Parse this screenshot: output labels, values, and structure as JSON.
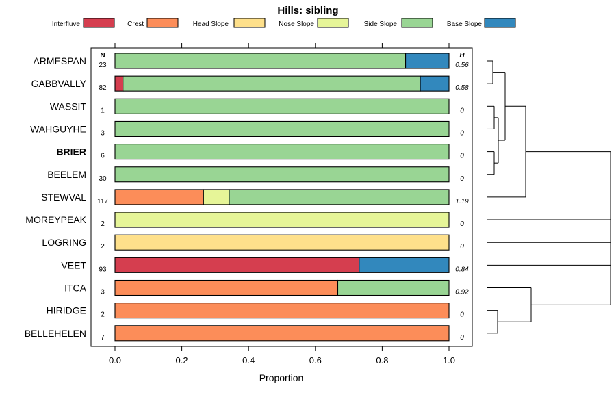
{
  "chart_data": {
    "type": "bar",
    "orientation": "horizontal",
    "stacked": true,
    "title": "Hills: sibling",
    "xlabel": "Proportion",
    "ylabel": "",
    "xlim": [
      0,
      1
    ],
    "xticks": [
      "0.0",
      "0.2",
      "0.4",
      "0.6",
      "0.8",
      "1.0"
    ],
    "xtick_values": [
      0,
      0.2,
      0.4,
      0.6,
      0.8,
      1.0
    ],
    "n_header": "N",
    "h_header": "H",
    "legend_position": "top",
    "series": [
      {
        "name": "Interfluve",
        "color": "#d53e4f"
      },
      {
        "name": "Crest",
        "color": "#fc8d59"
      },
      {
        "name": "Head Slope",
        "color": "#fee08b"
      },
      {
        "name": "Nose Slope",
        "color": "#e6f598"
      },
      {
        "name": "Side Slope",
        "color": "#99d594"
      },
      {
        "name": "Base Slope",
        "color": "#3288bd"
      }
    ],
    "categories": [
      {
        "label": "ARMESPAN",
        "n": "23",
        "h": "0.56",
        "bold": false,
        "values": [
          0,
          0,
          0,
          0,
          0.87,
          0.13
        ]
      },
      {
        "label": "GABBVALLY",
        "n": "82",
        "h": "0.58",
        "bold": false,
        "values": [
          0.024,
          0,
          0,
          0,
          0.89,
          0.086
        ]
      },
      {
        "label": "WASSIT",
        "n": "1",
        "h": "0",
        "bold": false,
        "values": [
          0,
          0,
          0,
          0,
          1,
          0
        ]
      },
      {
        "label": "WAHGUYHE",
        "n": "3",
        "h": "0",
        "bold": false,
        "values": [
          0,
          0,
          0,
          0,
          1,
          0
        ]
      },
      {
        "label": "BRIER",
        "n": "6",
        "h": "0",
        "bold": true,
        "values": [
          0,
          0,
          0,
          0,
          1,
          0
        ]
      },
      {
        "label": "BEELEM",
        "n": "30",
        "h": "0",
        "bold": false,
        "values": [
          0,
          0,
          0,
          0,
          1,
          0
        ]
      },
      {
        "label": "STEWVAL",
        "n": "117",
        "h": "1.19",
        "bold": false,
        "values": [
          0,
          0.265,
          0,
          0.077,
          0.658,
          0
        ]
      },
      {
        "label": "MOREYPEAK",
        "n": "2",
        "h": "0",
        "bold": false,
        "values": [
          0,
          0,
          0,
          1,
          0,
          0
        ]
      },
      {
        "label": "LOGRING",
        "n": "2",
        "h": "0",
        "bold": false,
        "values": [
          0,
          0,
          1,
          0,
          0,
          0
        ]
      },
      {
        "label": "VEET",
        "n": "93",
        "h": "0.84",
        "bold": false,
        "values": [
          0.731,
          0,
          0,
          0,
          0,
          0.269
        ]
      },
      {
        "label": "ITCA",
        "n": "3",
        "h": "0.92",
        "bold": false,
        "values": [
          0,
          0.667,
          0,
          0,
          0.333,
          0
        ]
      },
      {
        "label": "HIRIDGE",
        "n": "2",
        "h": "0",
        "bold": false,
        "values": [
          0,
          1,
          0,
          0,
          0,
          0
        ]
      },
      {
        "label": "BELLEHELEN",
        "n": "7",
        "h": "0",
        "bold": false,
        "values": [
          0,
          1,
          0,
          0,
          0,
          0
        ]
      }
    ],
    "dendrogram": {
      "type": "hierarchical-clustering",
      "merges": [
        {
          "children": [
            "ARMESPAN",
            "GABBVALLY"
          ]
        },
        {
          "children": [
            "WASSIT",
            "WAHGUYHE"
          ]
        },
        {
          "children": [
            "BRIER",
            "BEELEM"
          ]
        },
        {
          "children": [
            "WASSIT+WAHGUYHE",
            "BRIER+BEELEM"
          ]
        },
        {
          "children": [
            "ARMESPAN+GABBVALLY",
            "WASSIT..BEELEM"
          ]
        },
        {
          "children": [
            "ARMESPAN..BEELEM",
            "STEWVAL"
          ]
        },
        {
          "children": [
            "HIRIDGE",
            "BELLEHELEN"
          ]
        },
        {
          "children": [
            "ITCA",
            "HIRIDGE+BELLEHELEN"
          ]
        },
        {
          "children": [
            "all-clusters",
            "ITCA+HIRIDGE+BELLEHELEN"
          ]
        }
      ]
    }
  }
}
